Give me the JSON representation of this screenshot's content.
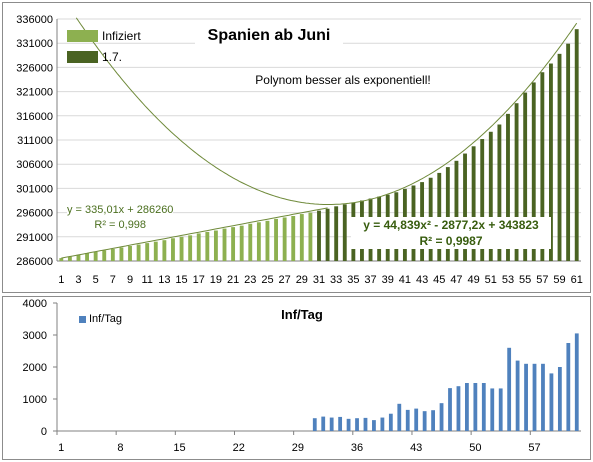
{
  "colors": {
    "infiziert": "#8db050",
    "july": "#4a6322",
    "trend": "#6f8a3a",
    "inf_tag": "#4f81bd",
    "grid": "#d9d9d9",
    "axis": "#808080"
  },
  "chart_data": [
    {
      "type": "bar",
      "title": "Spanien ab Juni",
      "subtitle": "Polynom besser als exponentiell!",
      "legend": [
        "Infiziert",
        "1.7."
      ],
      "legend_position": "top-left",
      "grid": true,
      "ylim": [
        286000,
        336000
      ],
      "yticks": [
        286000,
        291000,
        296000,
        301000,
        306000,
        311000,
        316000,
        321000,
        326000,
        331000,
        336000
      ],
      "xticks": [
        1,
        3,
        5,
        7,
        9,
        11,
        13,
        15,
        17,
        19,
        21,
        23,
        25,
        27,
        29,
        31,
        33,
        35,
        37,
        39,
        41,
        43,
        45,
        47,
        49,
        51,
        53,
        55,
        57,
        59,
        61
      ],
      "x_start": 1,
      "series": [
        {
          "name": "Infiziert",
          "x_start": 1,
          "values": [
            286600,
            286900,
            287300,
            287600,
            287900,
            288200,
            288500,
            288800,
            289100,
            289400,
            289700,
            290000,
            290300,
            290700,
            291000,
            291300,
            291700,
            292000,
            292300,
            292700,
            293000,
            293300,
            293700,
            294000,
            294300,
            294700,
            295000,
            295300,
            295700,
            296000
          ]
        },
        {
          "name": "1.7.",
          "x_start": 31,
          "values": [
            296400,
            296800,
            297300,
            297700,
            298100,
            298500,
            298900,
            299300,
            299700,
            300200,
            300900,
            301600,
            302300,
            303200,
            304200,
            305400,
            306700,
            308200,
            309700,
            311200,
            312700,
            314200,
            316400,
            318600,
            320800,
            322900,
            325000,
            326800,
            328800,
            330900,
            333900
          ]
        }
      ],
      "trendlines": [
        {
          "equation": "y = 335,01x + 286260",
          "r2": "R² = 0,998",
          "type": "linear",
          "a": 335.01,
          "b": 286260,
          "x_range": [
            1,
            32
          ]
        },
        {
          "equation": "y = 44,839x² - 2877,2x + 343823",
          "r2": "R² = 0,9987",
          "type": "poly2",
          "a": 44.839,
          "b": -2877.2,
          "c": 343823,
          "x_range": [
            1,
            61
          ]
        }
      ]
    },
    {
      "type": "bar",
      "title": "Inf/Tag",
      "legend": [
        "Inf/Tag"
      ],
      "legend_position": "top-left",
      "grid": false,
      "ylim": [
        0,
        4000
      ],
      "yticks": [
        0,
        1000,
        2000,
        3000,
        4000
      ],
      "xticks": [
        1,
        8,
        15,
        22,
        29,
        36,
        43,
        50,
        57
      ],
      "x_start": 1,
      "series": [
        {
          "name": "Inf/Tag",
          "x_start": 1,
          "values": [
            0,
            0,
            0,
            0,
            0,
            0,
            0,
            0,
            0,
            0,
            0,
            0,
            0,
            0,
            0,
            0,
            0,
            0,
            0,
            0,
            0,
            0,
            0,
            0,
            0,
            0,
            0,
            0,
            0,
            0,
            400,
            450,
            420,
            440,
            380,
            400,
            410,
            340,
            420,
            540,
            850,
            660,
            700,
            620,
            650,
            870,
            1340,
            1400,
            1500,
            1500,
            1500,
            1330,
            1330,
            2600,
            2200,
            2100,
            2100,
            2100,
            1800,
            2000,
            2750,
            3050
          ]
        }
      ]
    }
  ]
}
